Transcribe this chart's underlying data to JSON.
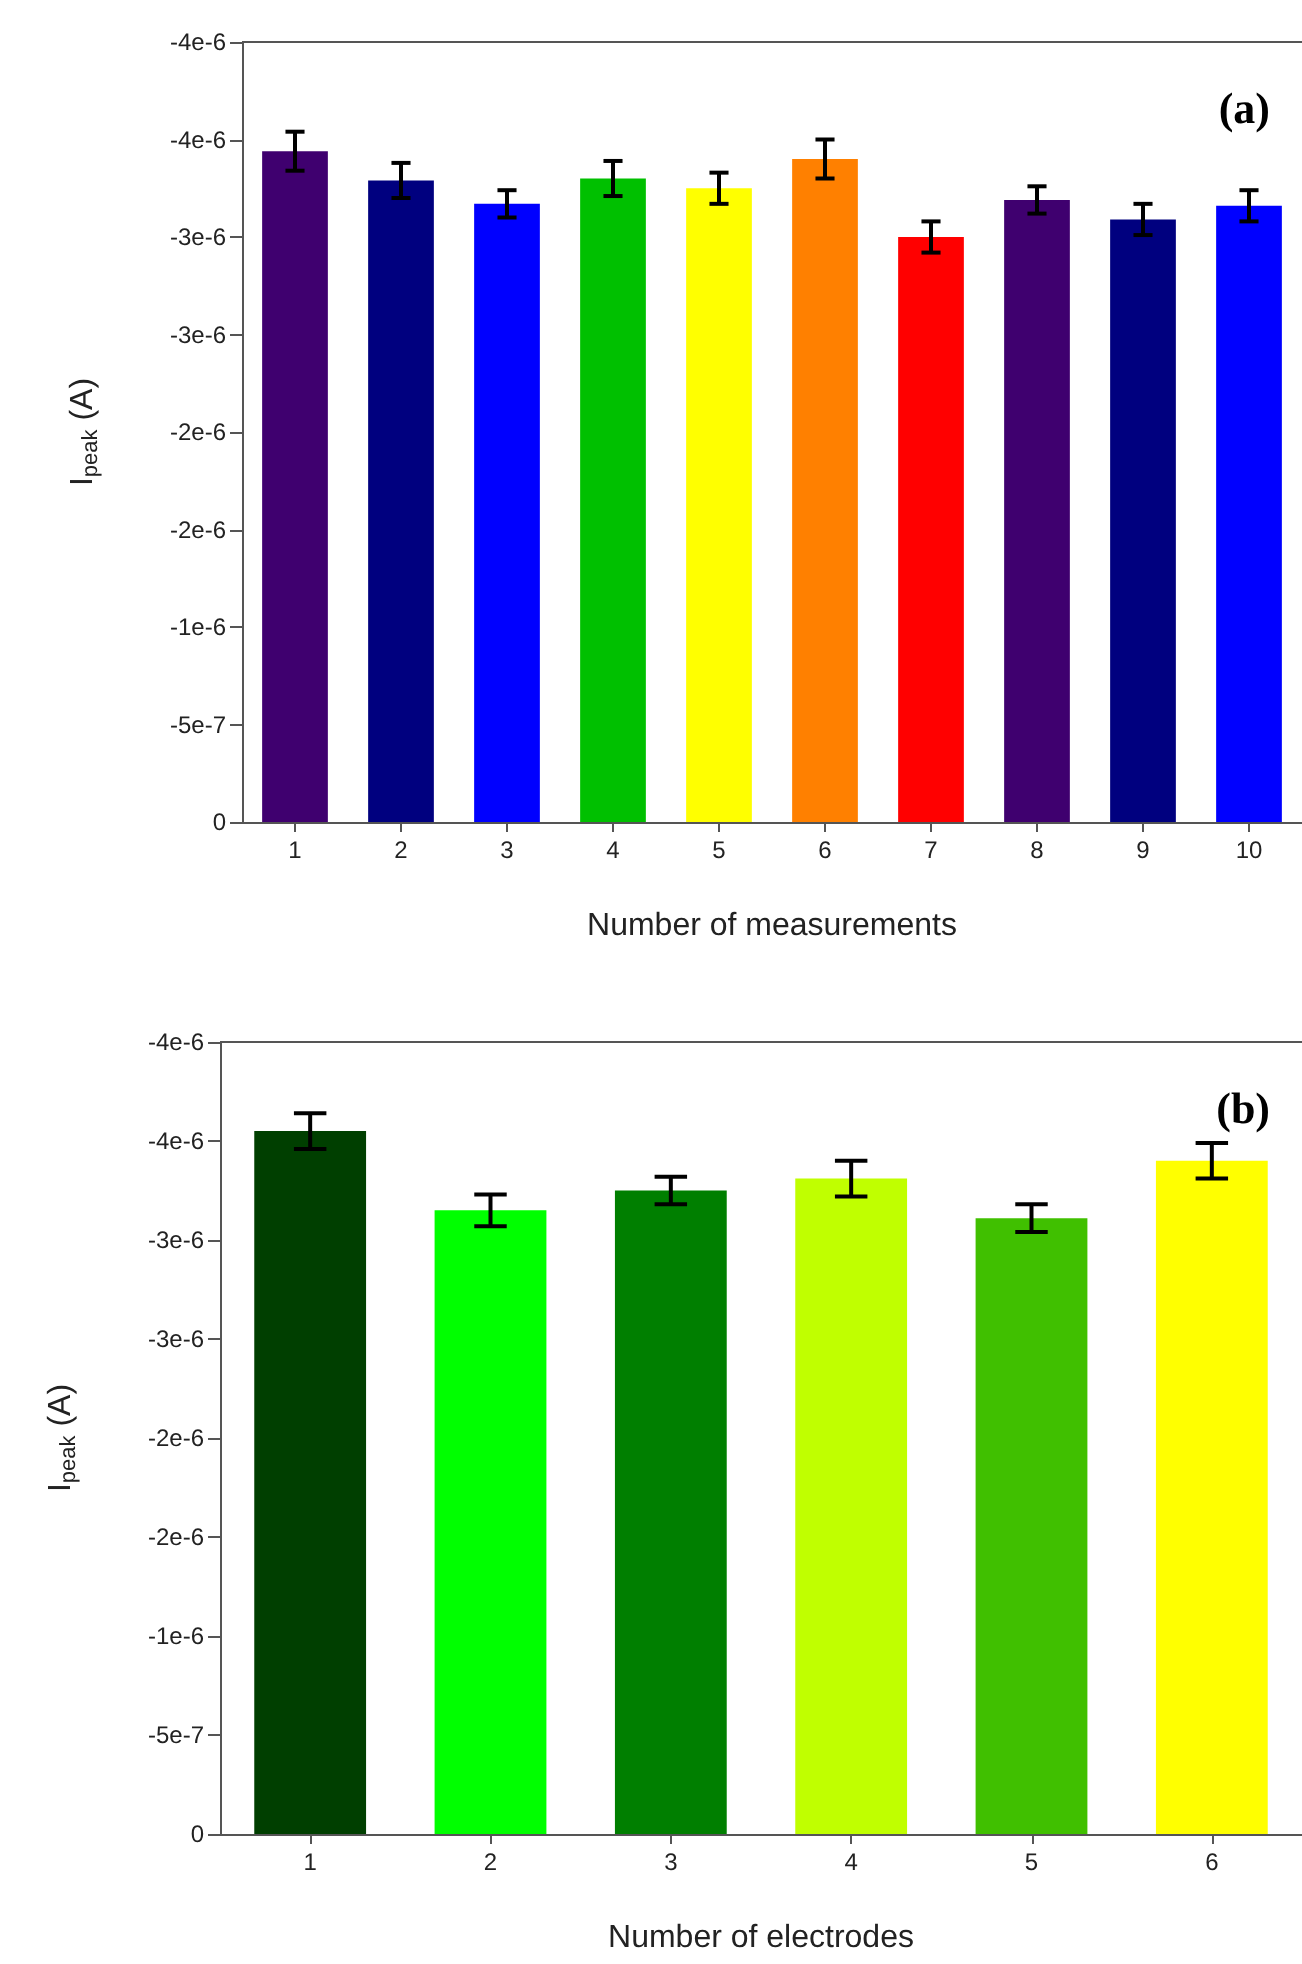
{
  "chart_data": [
    {
      "type": "bar",
      "xlabel": "Number of measurements",
      "ylabel": "I$_{peak}$ (A)",
      "annotations": [
        "(a)"
      ],
      "categories": [
        "1",
        "2",
        "3",
        "4",
        "5",
        "6",
        "7",
        "8",
        "9",
        "10"
      ],
      "values": [
        -3.44e-06,
        -3.29e-06,
        -3.17e-06,
        -3.3e-06,
        -3.25e-06,
        -3.4e-06,
        -3e-06,
        -3.19e-06,
        -3.09e-06,
        -3.16e-06
      ],
      "errors": [
        1e-07,
        9e-08,
        7e-08,
        9e-08,
        8e-08,
        1e-07,
        8e-08,
        7e-08,
        8e-08,
        8e-08
      ],
      "colors": [
        "#3f006f",
        "#00007f",
        "#0000ff",
        "#00c000",
        "#ffff00",
        "#ff8000",
        "#ff0000",
        "#3f006f",
        "#00007f",
        "#0000ff"
      ],
      "ylim": [
        0,
        -4e-06
      ],
      "yticks": [
        {
          "value": 0,
          "label": "0"
        },
        {
          "value": -5e-07,
          "label": "-5e-7"
        },
        {
          "value": -1e-06,
          "label": "-1e-6"
        },
        {
          "value": -1.5e-06,
          "label": "-2e-6"
        },
        {
          "value": -2e-06,
          "label": "-2e-6"
        },
        {
          "value": -2.5e-06,
          "label": "-3e-6"
        },
        {
          "value": -3e-06,
          "label": "-3e-6"
        },
        {
          "value": -3.5e-06,
          "label": "-4e-6"
        },
        {
          "value": -4e-06,
          "label": "-4e-6"
        }
      ]
    },
    {
      "type": "bar",
      "xlabel": "Number of electrodes",
      "ylabel": "I$_{peak}$ (A)",
      "annotations": [
        "(b)"
      ],
      "categories": [
        "1",
        "2",
        "3",
        "4",
        "5",
        "6"
      ],
      "values": [
        -3.55e-06,
        -3.15e-06,
        -3.25e-06,
        -3.31e-06,
        -3.11e-06,
        -3.4e-06
      ],
      "errors": [
        9e-08,
        8e-08,
        7e-08,
        9e-08,
        7e-08,
        9e-08
      ],
      "colors": [
        "#003f00",
        "#00ff00",
        "#007f00",
        "#c0ff00",
        "#40c000",
        "#ffff00"
      ],
      "ylim": [
        0,
        -4e-06
      ],
      "yticks": [
        {
          "value": 0,
          "label": "0"
        },
        {
          "value": -5e-07,
          "label": "-5e-7"
        },
        {
          "value": -1e-06,
          "label": "-1e-6"
        },
        {
          "value": -1.5e-06,
          "label": "-2e-6"
        },
        {
          "value": -2e-06,
          "label": "-2e-6"
        },
        {
          "value": -2.5e-06,
          "label": "-3e-6"
        },
        {
          "value": -3e-06,
          "label": "-3e-6"
        },
        {
          "value": -3.5e-06,
          "label": "-4e-6"
        },
        {
          "value": -4e-06,
          "label": "-4e-6"
        }
      ]
    }
  ]
}
